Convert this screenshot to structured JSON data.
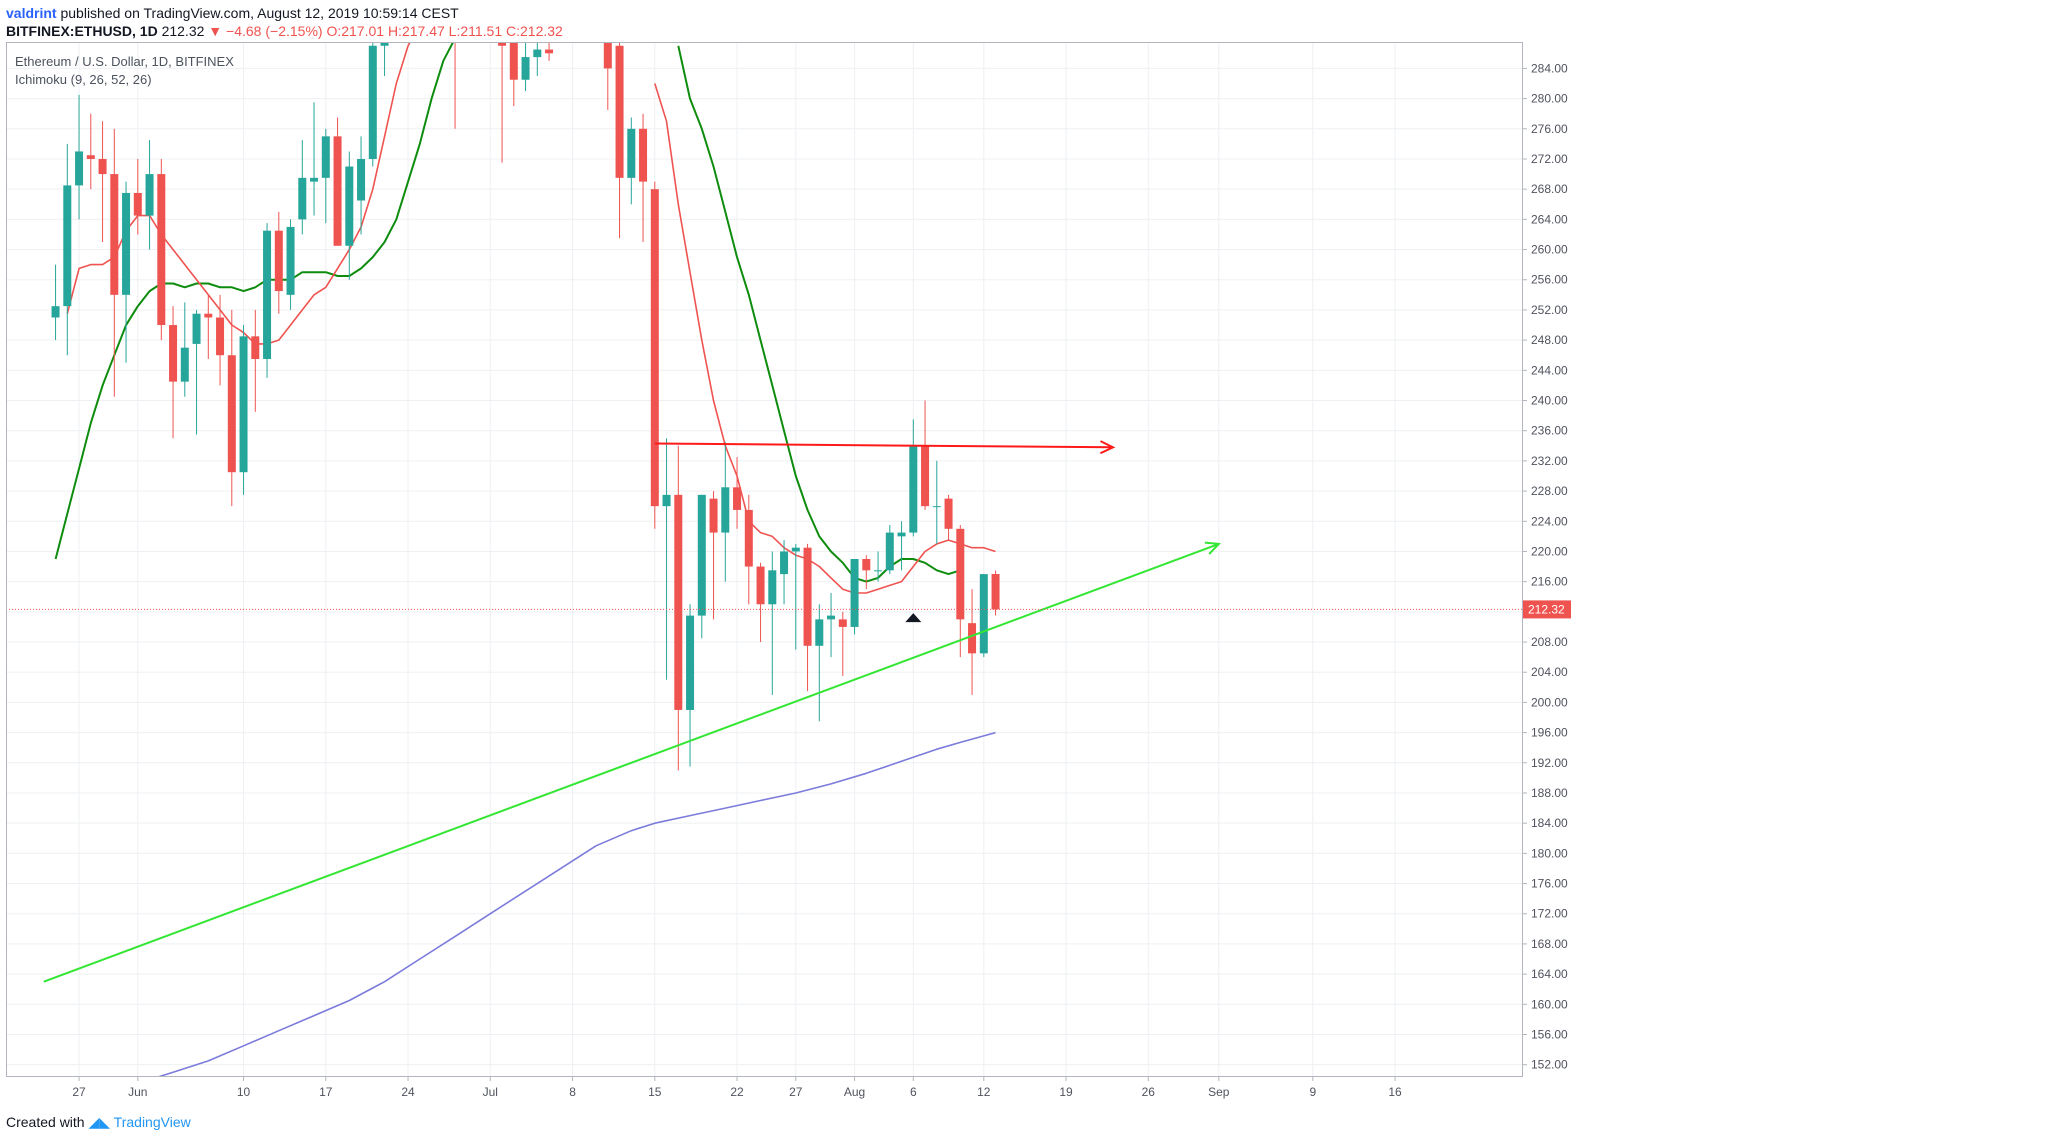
{
  "header": {
    "author": "valdrint",
    "published_text": "published on TradingView.com, August 12, 2019 10:59:14 CEST",
    "symbol_line": "BITFINEX:ETHUSD, 1D",
    "last": "212.32",
    "change": "−4.68 (−2.15%)",
    "ohlc_text": "O:217.01 H:217.47 L:211.51 C:212.32"
  },
  "overlay": {
    "title": "Ethereum / U.S. Dollar, 1D, BITFINEX",
    "indicator": "Ichimoku (9, 26, 52, 26)"
  },
  "footer": {
    "created_with": "Created with",
    "brand": "TradingView"
  },
  "chart_data": {
    "type": "candlestick",
    "ylim": [
      150.5,
      287.5
    ],
    "y_ticks": [
      "284.00",
      "280.00",
      "276.00",
      "272.00",
      "268.00",
      "264.00",
      "260.00",
      "256.00",
      "252.00",
      "248.00",
      "244.00",
      "240.00",
      "236.00",
      "232.00",
      "228.00",
      "224.00",
      "220.00",
      "216.00",
      "212.00",
      "208.00",
      "204.00",
      "200.00",
      "196.00",
      "192.00",
      "188.00",
      "184.00",
      "180.00",
      "176.00",
      "172.00",
      "168.00",
      "164.00",
      "160.00",
      "156.00",
      "152.00"
    ],
    "x_ticks": [
      {
        "label": "27",
        "day": -5
      },
      {
        "label": "Jun",
        "day": 0
      },
      {
        "label": "10",
        "day": 9
      },
      {
        "label": "17",
        "day": 16
      },
      {
        "label": "24",
        "day": 23
      },
      {
        "label": "Jul",
        "day": 30
      },
      {
        "label": "8",
        "day": 37
      },
      {
        "label": "15",
        "day": 44
      },
      {
        "label": "22",
        "day": 51
      },
      {
        "label": "27",
        "day": 56
      },
      {
        "label": "Aug",
        "day": 61
      },
      {
        "label": "6",
        "day": 66
      },
      {
        "label": "12",
        "day": 72
      },
      {
        "label": "19",
        "day": 79
      },
      {
        "label": "26",
        "day": 86
      },
      {
        "label": "Sep",
        "day": 92
      },
      {
        "label": "9",
        "day": 100
      },
      {
        "label": "16",
        "day": 107
      }
    ],
    "last_price": 212.32,
    "last_price_label": "212.32",
    "colors": {
      "up": "#26a69a",
      "down": "#ef5350",
      "tenkan": "#ef5350",
      "kijun": "#0e8c0e",
      "ma": "#7b7bdb",
      "support": "#33e633",
      "resistance": "#ff1a1a"
    },
    "candles": [
      {
        "d": -7,
        "o": 251.0,
        "h": 258.0,
        "l": 248.0,
        "c": 252.5
      },
      {
        "d": -6,
        "o": 252.5,
        "h": 274.0,
        "l": 246.0,
        "c": 268.5
      },
      {
        "d": -5,
        "o": 268.5,
        "h": 280.5,
        "l": 264.0,
        "c": 273.0
      },
      {
        "d": -4,
        "o": 272.5,
        "h": 278.0,
        "l": 268.0,
        "c": 272.0
      },
      {
        "d": -3,
        "o": 272.0,
        "h": 277.0,
        "l": 261.0,
        "c": 270.0
      },
      {
        "d": -2,
        "o": 270.0,
        "h": 276.0,
        "l": 240.5,
        "c": 254.0
      },
      {
        "d": -1,
        "o": 254.0,
        "h": 269.0,
        "l": 245.0,
        "c": 267.5
      },
      {
        "d": 0,
        "o": 267.5,
        "h": 272.0,
        "l": 262.0,
        "c": 264.5
      },
      {
        "d": 1,
        "o": 264.5,
        "h": 274.5,
        "l": 260.0,
        "c": 270.0
      },
      {
        "d": 2,
        "o": 270.0,
        "h": 272.0,
        "l": 248.0,
        "c": 250.0
      },
      {
        "d": 3,
        "o": 250.0,
        "h": 252.5,
        "l": 235.0,
        "c": 242.5
      },
      {
        "d": 4,
        "o": 242.5,
        "h": 253.0,
        "l": 240.5,
        "c": 247.0
      },
      {
        "d": 5,
        "o": 247.5,
        "h": 252.0,
        "l": 235.5,
        "c": 251.5
      },
      {
        "d": 6,
        "o": 251.5,
        "h": 254.0,
        "l": 245.5,
        "c": 251.0
      },
      {
        "d": 7,
        "o": 251.0,
        "h": 254.0,
        "l": 242.0,
        "c": 246.0
      },
      {
        "d": 8,
        "o": 246.0,
        "h": 252.0,
        "l": 226.0,
        "c": 230.5
      },
      {
        "d": 9,
        "o": 230.5,
        "h": 250.0,
        "l": 227.5,
        "c": 248.5
      },
      {
        "d": 10,
        "o": 248.5,
        "h": 252.0,
        "l": 238.5,
        "c": 245.5
      },
      {
        "d": 11,
        "o": 245.5,
        "h": 263.5,
        "l": 243.0,
        "c": 262.5
      },
      {
        "d": 12,
        "o": 262.5,
        "h": 265.0,
        "l": 251.5,
        "c": 254.5
      },
      {
        "d": 13,
        "o": 254.0,
        "h": 264.0,
        "l": 252.0,
        "c": 263.0
      },
      {
        "d": 14,
        "o": 264.0,
        "h": 274.5,
        "l": 262.0,
        "c": 269.5
      },
      {
        "d": 15,
        "o": 269.0,
        "h": 279.5,
        "l": 264.5,
        "c": 269.5
      },
      {
        "d": 16,
        "o": 269.5,
        "h": 276.0,
        "l": 263.5,
        "c": 275.0
      },
      {
        "d": 17,
        "o": 275.0,
        "h": 277.5,
        "l": 260.5,
        "c": 260.5
      },
      {
        "d": 18,
        "o": 260.5,
        "h": 273.0,
        "l": 256.0,
        "c": 271.0
      },
      {
        "d": 19,
        "o": 266.5,
        "h": 275.0,
        "l": 262.0,
        "c": 272.0
      },
      {
        "d": 20,
        "o": 272.0,
        "h": 290.0,
        "l": 271.0,
        "c": 287.0
      },
      {
        "d": 21,
        "o": 287.0,
        "h": 298.0,
        "l": 283.0,
        "c": 295.0
      },
      {
        "d": 27,
        "o": 300.0,
        "h": 310.0,
        "l": 276.0,
        "c": 295.0
      },
      {
        "d": 31,
        "o": 292.0,
        "h": 300.0,
        "l": 271.5,
        "c": 287.0
      },
      {
        "d": 32,
        "o": 287.5,
        "h": 296.0,
        "l": 279.0,
        "c": 282.5
      },
      {
        "d": 33,
        "o": 282.5,
        "h": 292.0,
        "l": 281.0,
        "c": 285.5
      },
      {
        "d": 34,
        "o": 285.5,
        "h": 292.0,
        "l": 283.0,
        "c": 286.5
      },
      {
        "d": 35,
        "o": 286.5,
        "h": 290.0,
        "l": 285.0,
        "c": 286.0
      },
      {
        "d": 40,
        "o": 292.0,
        "h": 302.0,
        "l": 278.5,
        "c": 284.0
      },
      {
        "d": 41,
        "o": 287.0,
        "h": 297.0,
        "l": 261.5,
        "c": 269.5
      },
      {
        "d": 42,
        "o": 269.5,
        "h": 277.5,
        "l": 266.0,
        "c": 276.0
      },
      {
        "d": 43,
        "o": 276.0,
        "h": 278.0,
        "l": 261.0,
        "c": 269.0
      },
      {
        "d": 44,
        "o": 268.0,
        "h": 269.0,
        "l": 223.0,
        "c": 226.0
      },
      {
        "d": 45,
        "o": 226.0,
        "h": 235.0,
        "l": 203.0,
        "c": 227.5
      },
      {
        "d": 46,
        "o": 227.5,
        "h": 234.0,
        "l": 191.0,
        "c": 199.0
      },
      {
        "d": 47,
        "o": 199.0,
        "h": 213.0,
        "l": 191.5,
        "c": 211.5
      },
      {
        "d": 48,
        "o": 211.5,
        "h": 227.5,
        "l": 208.5,
        "c": 227.5
      },
      {
        "d": 49,
        "o": 227.0,
        "h": 228.0,
        "l": 211.0,
        "c": 222.5
      },
      {
        "d": 50,
        "o": 222.5,
        "h": 234.5,
        "l": 216.0,
        "c": 228.5
      },
      {
        "d": 51,
        "o": 228.5,
        "h": 232.5,
        "l": 223.0,
        "c": 225.5
      },
      {
        "d": 52,
        "o": 225.5,
        "h": 227.5,
        "l": 213.0,
        "c": 218.0
      },
      {
        "d": 53,
        "o": 218.0,
        "h": 218.5,
        "l": 208.0,
        "c": 213.0
      },
      {
        "d": 54,
        "o": 213.0,
        "h": 220.0,
        "l": 201.0,
        "c": 217.5
      },
      {
        "d": 55,
        "o": 217.0,
        "h": 221.5,
        "l": 213.0,
        "c": 220.0
      },
      {
        "d": 56,
        "o": 220.0,
        "h": 221.0,
        "l": 207.0,
        "c": 220.5
      },
      {
        "d": 57,
        "o": 220.5,
        "h": 221.0,
        "l": 201.5,
        "c": 207.5
      },
      {
        "d": 58,
        "o": 207.5,
        "h": 213.0,
        "l": 197.5,
        "c": 211.0
      },
      {
        "d": 59,
        "o": 211.0,
        "h": 214.5,
        "l": 206.0,
        "c": 211.5
      },
      {
        "d": 60,
        "o": 211.0,
        "h": 212.0,
        "l": 203.5,
        "c": 210.0
      },
      {
        "d": 61,
        "o": 210.0,
        "h": 219.0,
        "l": 209.0,
        "c": 219.0
      },
      {
        "d": 62,
        "o": 219.0,
        "h": 219.5,
        "l": 215.0,
        "c": 217.5
      },
      {
        "d": 63,
        "o": 217.5,
        "h": 220.0,
        "l": 216.0,
        "c": 217.5
      },
      {
        "d": 64,
        "o": 217.5,
        "h": 223.5,
        "l": 217.0,
        "c": 222.5
      },
      {
        "d": 65,
        "o": 222.0,
        "h": 224.0,
        "l": 217.5,
        "c": 222.5
      },
      {
        "d": 66,
        "o": 222.5,
        "h": 237.5,
        "l": 222.0,
        "c": 234.0
      },
      {
        "d": 67,
        "o": 234.0,
        "h": 240.0,
        "l": 225.5,
        "c": 226.0
      },
      {
        "d": 68,
        "o": 226.0,
        "h": 232.0,
        "l": 221.0,
        "c": 226.0
      },
      {
        "d": 69,
        "o": 227.0,
        "h": 227.5,
        "l": 221.5,
        "c": 223.0
      },
      {
        "d": 70,
        "o": 223.0,
        "h": 223.5,
        "l": 206.0,
        "c": 211.0
      },
      {
        "d": 71,
        "o": 210.5,
        "h": 215.0,
        "l": 201.0,
        "c": 206.5
      },
      {
        "d": 72,
        "o": 206.5,
        "h": 217.0,
        "l": 206.0,
        "c": 217.0
      },
      {
        "d": 73,
        "o": 217.01,
        "h": 217.47,
        "l": 211.51,
        "c": 212.32
      }
    ],
    "tenkan": [
      [
        -6,
        251.5
      ],
      [
        -5,
        257.5
      ],
      [
        -4,
        258.0
      ],
      [
        -3,
        258.0
      ],
      [
        -2,
        259.0
      ],
      [
        -1,
        262.5
      ],
      [
        0,
        264.5
      ],
      [
        1,
        264.5
      ],
      [
        2,
        262.0
      ],
      [
        3,
        260.0
      ],
      [
        4,
        258.0
      ],
      [
        5,
        256.0
      ],
      [
        6,
        254.0
      ],
      [
        7,
        252.0
      ],
      [
        8,
        250.0
      ],
      [
        9,
        249.0
      ],
      [
        10,
        247.5
      ],
      [
        11,
        247.5
      ],
      [
        12,
        248.0
      ],
      [
        13,
        250.0
      ],
      [
        14,
        252.0
      ],
      [
        15,
        254.0
      ],
      [
        16,
        255.0
      ],
      [
        17,
        257.5
      ],
      [
        18,
        260.0
      ],
      [
        19,
        263.0
      ],
      [
        20,
        268.0
      ],
      [
        21,
        275.0
      ],
      [
        22,
        282.0
      ],
      [
        23,
        287.0
      ],
      [
        24,
        290.0
      ],
      [
        44,
        282.0
      ],
      [
        45,
        277.0
      ],
      [
        46,
        266.0
      ],
      [
        47,
        257.0
      ],
      [
        48,
        248.0
      ],
      [
        49,
        240.0
      ],
      [
        50,
        234.0
      ],
      [
        51,
        230.0
      ],
      [
        52,
        224.0
      ],
      [
        53,
        222.5
      ],
      [
        54,
        222.0
      ],
      [
        55,
        220.5
      ],
      [
        56,
        219.5
      ],
      [
        57,
        219.0
      ],
      [
        58,
        218.0
      ],
      [
        59,
        216.5
      ],
      [
        60,
        215.0
      ],
      [
        61,
        214.5
      ],
      [
        62,
        214.5
      ],
      [
        63,
        215.0
      ],
      [
        64,
        215.5
      ],
      [
        65,
        216.0
      ],
      [
        66,
        218.0
      ],
      [
        67,
        220.0
      ],
      [
        68,
        221.0
      ],
      [
        69,
        221.5
      ],
      [
        70,
        221.0
      ],
      [
        71,
        220.5
      ],
      [
        72,
        220.5
      ],
      [
        73,
        220.0
      ]
    ],
    "kijun": [
      [
        -7,
        219.0
      ],
      [
        -6,
        225.0
      ],
      [
        -5,
        231.0
      ],
      [
        -4,
        237.0
      ],
      [
        -3,
        242.0
      ],
      [
        -2,
        246.0
      ],
      [
        -1,
        250.0
      ],
      [
        0,
        252.5
      ],
      [
        1,
        254.5
      ],
      [
        2,
        255.5
      ],
      [
        3,
        255.5
      ],
      [
        4,
        255.0
      ],
      [
        5,
        255.5
      ],
      [
        6,
        255.5
      ],
      [
        7,
        255.0
      ],
      [
        8,
        255.0
      ],
      [
        9,
        254.5
      ],
      [
        10,
        255.0
      ],
      [
        11,
        256.0
      ],
      [
        12,
        256.0
      ],
      [
        13,
        256.0
      ],
      [
        14,
        257.0
      ],
      [
        15,
        257.0
      ],
      [
        16,
        257.0
      ],
      [
        17,
        256.5
      ],
      [
        18,
        256.5
      ],
      [
        19,
        257.5
      ],
      [
        20,
        259.0
      ],
      [
        21,
        261.0
      ],
      [
        22,
        264.0
      ],
      [
        23,
        269.0
      ],
      [
        24,
        274.0
      ],
      [
        25,
        280.0
      ],
      [
        26,
        285.0
      ],
      [
        27,
        288.0
      ],
      [
        28,
        290.0
      ],
      [
        46,
        287.0
      ],
      [
        47,
        280.0
      ],
      [
        48,
        276.0
      ],
      [
        49,
        271.0
      ],
      [
        50,
        265.0
      ],
      [
        51,
        259.0
      ],
      [
        52,
        254.0
      ],
      [
        53,
        248.0
      ],
      [
        54,
        242.0
      ],
      [
        55,
        236.0
      ],
      [
        56,
        230.0
      ],
      [
        57,
        225.5
      ],
      [
        58,
        222.0
      ],
      [
        59,
        220.0
      ],
      [
        60,
        218.5
      ],
      [
        61,
        216.5
      ],
      [
        62,
        216.0
      ],
      [
        63,
        216.5
      ],
      [
        64,
        218.0
      ],
      [
        65,
        219.0
      ],
      [
        66,
        219.0
      ],
      [
        67,
        218.5
      ],
      [
        68,
        217.5
      ],
      [
        69,
        217.0
      ],
      [
        70,
        217.5
      ]
    ],
    "ma": [
      [
        -2,
        148.0
      ],
      [
        0,
        149.5
      ],
      [
        3,
        151.0
      ],
      [
        6,
        152.5
      ],
      [
        9,
        154.5
      ],
      [
        12,
        156.5
      ],
      [
        15,
        158.5
      ],
      [
        18,
        160.5
      ],
      [
        21,
        163.0
      ],
      [
        24,
        166.0
      ],
      [
        27,
        169.0
      ],
      [
        30,
        172.0
      ],
      [
        33,
        175.0
      ],
      [
        36,
        178.0
      ],
      [
        39,
        181.0
      ],
      [
        42,
        183.0
      ],
      [
        44,
        184.0
      ],
      [
        47,
        185.0
      ],
      [
        50,
        186.0
      ],
      [
        53,
        187.0
      ],
      [
        56,
        188.0
      ],
      [
        59,
        189.2
      ],
      [
        62,
        190.6
      ],
      [
        65,
        192.2
      ],
      [
        68,
        193.8
      ],
      [
        70,
        194.7
      ],
      [
        73,
        196.0
      ]
    ],
    "support_line": [
      [
        -8,
        163.0
      ],
      [
        92,
        221.0
      ]
    ],
    "resistance_line": [
      [
        44,
        234.3
      ],
      [
        83,
        233.8
      ]
    ],
    "marker": {
      "d": 66,
      "y": 211.3
    }
  }
}
